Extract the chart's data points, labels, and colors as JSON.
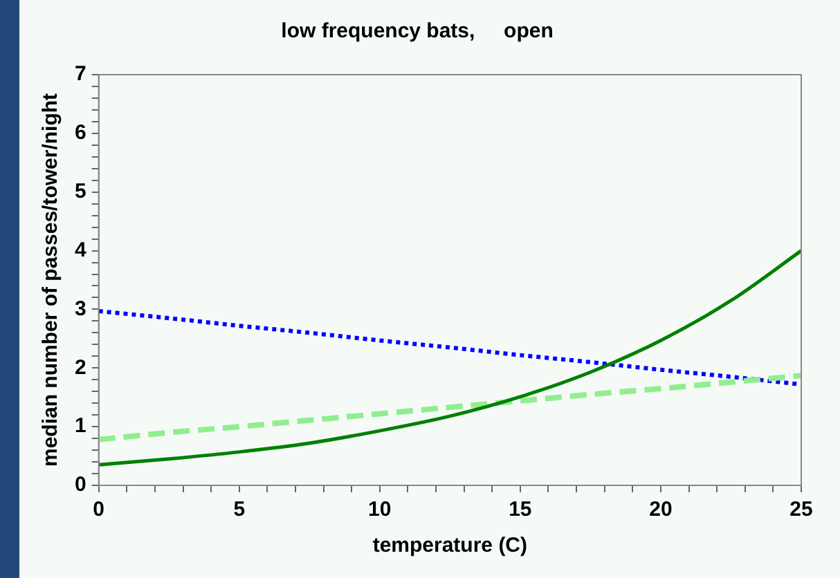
{
  "chart_data": {
    "type": "line",
    "title": "low frequency bats,     open",
    "xlabel": "temperature (C)",
    "ylabel": "median number of passes/tower/night",
    "x": [
      0,
      2.5,
      5,
      7.5,
      10,
      12.5,
      15,
      17.5,
      20,
      22.5,
      25
    ],
    "series": [
      {
        "color": "#008000",
        "line_style": "solid",
        "values": [
          0.35,
          0.45,
          0.57,
          0.72,
          0.93,
          1.18,
          1.51,
          1.93,
          2.47,
          3.15,
          4.0
        ]
      },
      {
        "color": "#90ee90",
        "line_style": "dashed",
        "values": [
          0.78,
          0.9,
          1.0,
          1.11,
          1.22,
          1.33,
          1.44,
          1.55,
          1.65,
          1.76,
          1.87
        ]
      },
      {
        "color": "#0000ff",
        "line_style": "dotted",
        "values": [
          2.97,
          2.85,
          2.72,
          2.6,
          2.47,
          2.35,
          2.22,
          2.1,
          1.97,
          1.85,
          1.72
        ]
      }
    ],
    "xlim": [
      0,
      25
    ],
    "xticks": [
      0,
      5,
      10,
      15,
      20,
      25
    ],
    "ylim": [
      0,
      7
    ],
    "yticks": [
      0,
      1,
      2,
      3,
      4,
      5,
      6,
      7
    ],
    "grid": false,
    "legend": false,
    "marker": "none"
  }
}
